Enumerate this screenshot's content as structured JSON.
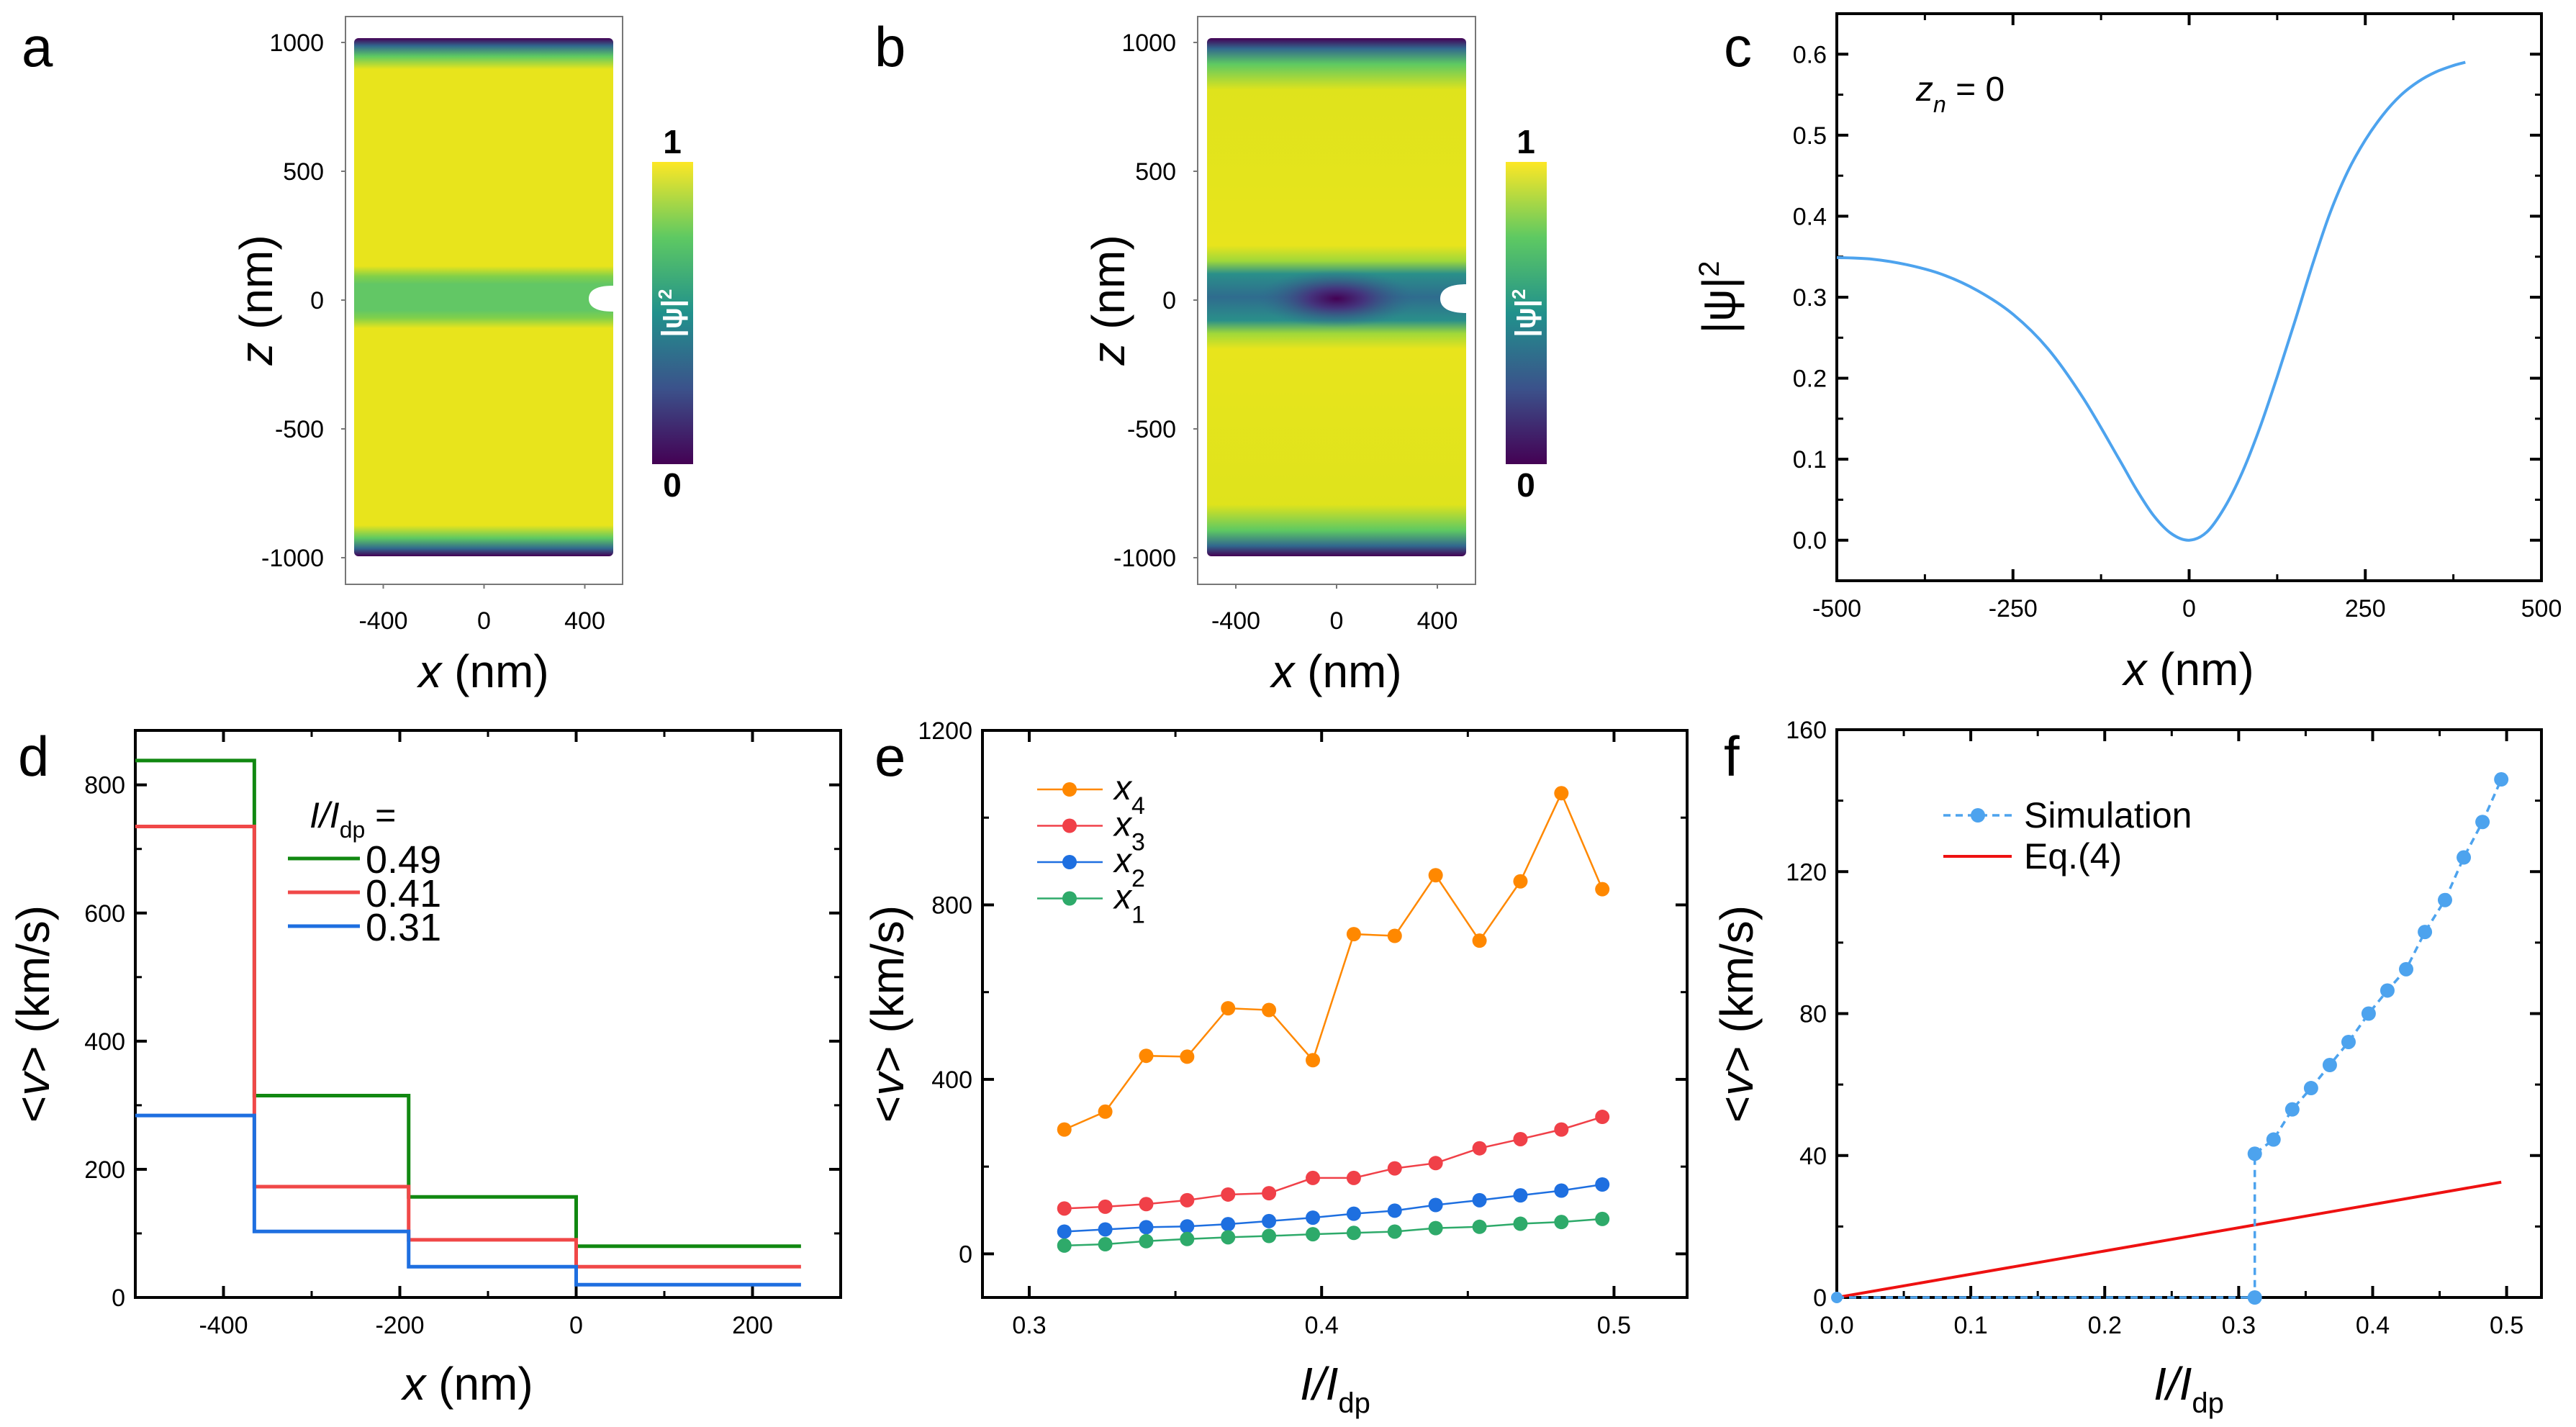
{
  "figure": {
    "panel_labels": [
      "a",
      "b",
      "c",
      "d",
      "e",
      "f"
    ]
  },
  "colors": {
    "viridis": [
      "#440154",
      "#3b528b",
      "#21918c",
      "#5ec962",
      "#fde725"
    ],
    "curve_blue": "#4da3ee",
    "d_green": "#118811",
    "d_red": "#f04848",
    "d_blue": "#1e6fe0",
    "e_orange": "#ff8800",
    "e_red": "#f04048",
    "e_blue": "#1e6fe0",
    "e_green": "#2eaa6a",
    "f_sim": "#4da3ee",
    "f_eq": "#ee1111"
  },
  "chart_data": [
    {
      "panel": "a",
      "type": "heatmap",
      "title": "",
      "xlabel": "x (nm)",
      "ylabel": "z (nm)",
      "xlim": [
        -514,
        514
      ],
      "ylim": [
        -1000,
        1000
      ],
      "xticks": [
        -400,
        0,
        400
      ],
      "yticks": [
        1000,
        500,
        0,
        -500,
        -1000
      ],
      "colorbar": {
        "label": "|ψ|²",
        "min_label": "0",
        "max_label": "1",
        "range": [
          0,
          1
        ],
        "colormap": "viridis"
      },
      "description": "Order parameter |psi|^2 map; uniform ~0.95 with suppressed band near z=0 (~0.65) and depletion at top/bottom edges; semicircular notch at right edge, z=0",
      "band_value": 0.65,
      "bulk_value": 0.95,
      "vortex_core": null
    },
    {
      "panel": "b",
      "type": "heatmap",
      "title": "",
      "xlabel": "x (nm)",
      "ylabel": "z (nm)",
      "xlim": [
        -514,
        514
      ],
      "ylim": [
        -1000,
        1000
      ],
      "xticks": [
        -400,
        0,
        400
      ],
      "yticks": [
        1000,
        500,
        0,
        -500,
        -1000
      ],
      "colorbar": {
        "label": "|ψ|²",
        "min_label": "0",
        "max_label": "1",
        "range": [
          0,
          1
        ],
        "colormap": "viridis"
      },
      "description": "Order parameter |psi|^2 map with vortex core at (0,0) inside suppressed band near z=0; notch at right edge",
      "band_value": 0.35,
      "bulk_value": 0.95,
      "vortex_core": [
        0,
        0
      ]
    },
    {
      "panel": "c",
      "type": "line",
      "title": "",
      "annotation": "z_n = 0",
      "xlabel": "x (nm)",
      "ylabel": "|ψ|²",
      "xlim": [
        -500,
        500
      ],
      "ylim": [
        -0.05,
        0.65
      ],
      "xticks": [
        -500,
        -250,
        0,
        250,
        500
      ],
      "xtick_labels": [
        "-500",
        "-250",
        "0",
        "250",
        "500"
      ],
      "yticks": [
        0.0,
        0.1,
        0.2,
        0.3,
        0.4,
        0.5,
        0.6
      ],
      "ytick_labels": [
        "0.0",
        "0.1",
        "0.2",
        "0.3",
        "0.4",
        "0.5",
        "0.6"
      ],
      "series": [
        {
          "name": "|psi|^2 at z_n=0",
          "x": [
            -500,
            -450,
            -400,
            -350,
            -300,
            -250,
            -200,
            -150,
            -100,
            -75,
            -50,
            -25,
            0,
            25,
            50,
            75,
            100,
            125,
            150,
            175,
            200,
            225,
            250,
            275,
            300,
            325,
            350,
            375,
            392
          ],
          "y": [
            0.349,
            0.347,
            0.34,
            0.328,
            0.308,
            0.279,
            0.236,
            0.175,
            0.101,
            0.063,
            0.03,
            0.008,
            0.0,
            0.01,
            0.04,
            0.083,
            0.138,
            0.202,
            0.27,
            0.34,
            0.404,
            0.455,
            0.494,
            0.525,
            0.549,
            0.566,
            0.578,
            0.586,
            0.59
          ]
        }
      ]
    },
    {
      "panel": "d",
      "type": "line",
      "subtype": "step",
      "title": "",
      "xlabel": "x (nm)",
      "ylabel": "<v> (km/s)",
      "xlim": [
        -500,
        300
      ],
      "ylim": [
        0,
        885
      ],
      "xticks": [
        -400,
        -200,
        0,
        200
      ],
      "xtick_labels": [
        "-400",
        "-200",
        "0",
        "200"
      ],
      "yticks": [
        0,
        200,
        400,
        600,
        800
      ],
      "ytick_labels": [
        "0",
        "200",
        "400",
        "600",
        "800"
      ],
      "legend_title": "I/I_dp =",
      "legend_position": "top-center",
      "bin_edges": [
        -500,
        -365,
        -190,
        0,
        255
      ],
      "series": [
        {
          "name": "0.49",
          "values": [
            838,
            315,
            157,
            80
          ]
        },
        {
          "name": "0.41",
          "values": [
            735,
            173,
            90,
            48
          ]
        },
        {
          "name": "0.31",
          "values": [
            284,
            103,
            48,
            20
          ]
        }
      ]
    },
    {
      "panel": "e",
      "type": "line",
      "title": "",
      "xlabel": "I/I_dp",
      "ylabel": "<v> (km/s)",
      "xlim": [
        0.284,
        0.525
      ],
      "ylim": [
        -100,
        1200
      ],
      "xticks": [
        0.3,
        0.4,
        0.5
      ],
      "xtick_labels": [
        "0.3",
        "0.4",
        "0.5"
      ],
      "yticks": [
        0,
        400,
        800,
        1200
      ],
      "ytick_labels": [
        "0",
        "400",
        "800",
        "1200"
      ],
      "legend_position": "top-left",
      "x": [
        0.312,
        0.326,
        0.34,
        0.354,
        0.368,
        0.382,
        0.397,
        0.411,
        0.425,
        0.439,
        0.454,
        0.468,
        0.482,
        0.496
      ],
      "series": [
        {
          "name": "x4",
          "values": [
            285,
            326,
            454,
            452,
            563,
            559,
            444,
            733,
            729,
            868,
            718,
            854,
            1056,
            836
          ]
        },
        {
          "name": "x3",
          "values": [
            104,
            108,
            114,
            123,
            136,
            139,
            174,
            174,
            196,
            208,
            242,
            263,
            285,
            314
          ]
        },
        {
          "name": "x2",
          "values": [
            51,
            56,
            61,
            63,
            68,
            75,
            83,
            92,
            99,
            112,
            123,
            134,
            145,
            159
          ]
        },
        {
          "name": "x1",
          "values": [
            19,
            22,
            29,
            34,
            38,
            41,
            45,
            48,
            51,
            59,
            62,
            69,
            73,
            80
          ]
        }
      ]
    },
    {
      "panel": "f",
      "type": "line",
      "title": "",
      "xlabel": "I/I_dp",
      "ylabel": "<v> (km/s)",
      "xlim": [
        0,
        0.526
      ],
      "ylim": [
        0,
        160
      ],
      "xticks": [
        0.0,
        0.1,
        0.2,
        0.3,
        0.4,
        0.5
      ],
      "xtick_labels": [
        "0.0",
        "0.1",
        "0.2",
        "0.3",
        "0.4",
        "0.5"
      ],
      "yticks": [
        0,
        40,
        80,
        120,
        160
      ],
      "ytick_labels": [
        "0",
        "40",
        "80",
        "120",
        "160"
      ],
      "legend_position": "top-center",
      "series": [
        {
          "name": "Simulation",
          "style": "dashed-markers",
          "x": [
            0.0,
            0.312,
            0.312,
            0.326,
            0.34,
            0.354,
            0.368,
            0.382,
            0.397,
            0.411,
            0.425,
            0.439,
            0.454,
            0.468,
            0.482,
            0.496
          ],
          "values": [
            0,
            0,
            40.5,
            44.5,
            53,
            59,
            65.5,
            72,
            80,
            86.5,
            92.5,
            103,
            112,
            124,
            134,
            146
          ]
        },
        {
          "name": "Eq.(4)",
          "style": "solid",
          "x": [
            0.0,
            0.496
          ],
          "values": [
            0,
            32.5
          ]
        }
      ]
    }
  ],
  "legends": {
    "d_title_main": "I/I",
    "d_title_sub": "dp",
    "d_title_eq": " =",
    "d_items": [
      "0.49",
      "0.41",
      "0.31"
    ],
    "e_items": [
      {
        "main": "x",
        "sub": "4"
      },
      {
        "main": "x",
        "sub": "3"
      },
      {
        "main": "x",
        "sub": "2"
      },
      {
        "main": "x",
        "sub": "1"
      }
    ],
    "f_items": [
      "Simulation",
      "Eq.(4)"
    ]
  },
  "labels": {
    "x_nm_main": "x",
    "nm": " (nm)",
    "z_main": "z",
    "psi2": "|ψ|",
    "sq": "2",
    "v_lt": "<",
    "v": "v",
    "v_gt": ">",
    "kms": "  (km/s)",
    "I": "I/I",
    "dp": "dp",
    "zn_z": "z",
    "zn_n": "n",
    "zn_eq": " = 0"
  }
}
